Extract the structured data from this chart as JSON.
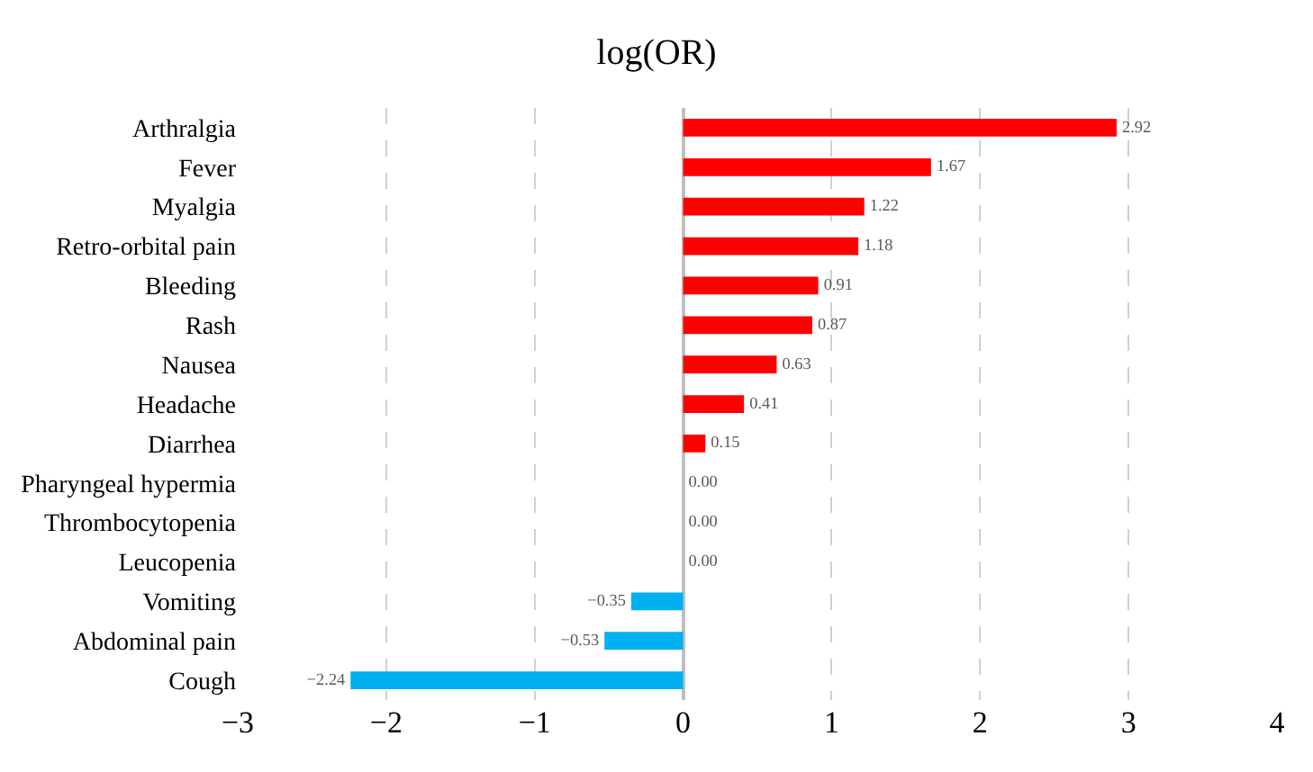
{
  "chart_data": {
    "type": "bar",
    "orientation": "horizontal",
    "title": "log(OR)",
    "categories": [
      "Arthralgia",
      "Fever",
      "Myalgia",
      "Retro-orbital pain",
      "Bleeding",
      "Rash",
      "Nausea",
      "Headache",
      "Diarrhea",
      "Pharyngeal hypermia",
      "Thrombocytopenia",
      "Leucopenia",
      "Vomiting",
      "Abdominal pain",
      "Cough"
    ],
    "values": [
      2.92,
      1.67,
      1.22,
      1.18,
      0.91,
      0.87,
      0.63,
      0.41,
      0.15,
      0.0,
      0.0,
      0.0,
      -0.35,
      -0.53,
      -2.24
    ],
    "value_labels": [
      "2.92",
      "1.67",
      "1.22",
      "1.18",
      "0.91",
      "0.87",
      "0.63",
      "0.41",
      "0.15",
      "0.00",
      "0.00",
      "0.00",
      "−0.35",
      "−0.53",
      "−2.24"
    ],
    "colors": [
      "#ff0000",
      "#ff0000",
      "#ff0000",
      "#ff0000",
      "#ff0000",
      "#ff0000",
      "#ff0000",
      "#ff0000",
      "#ff0000",
      "#ff0000",
      "#ff0000",
      "#ff0000",
      "#00b0f0",
      "#00b0f0",
      "#00b0f0"
    ],
    "xlim": [
      -3,
      4
    ],
    "xticks": [
      {
        "value": -3,
        "label": "−3"
      },
      {
        "value": -2,
        "label": "−2"
      },
      {
        "value": -1,
        "label": "−1"
      },
      0,
      1,
      2,
      3,
      4
    ],
    "grid": "x"
  }
}
